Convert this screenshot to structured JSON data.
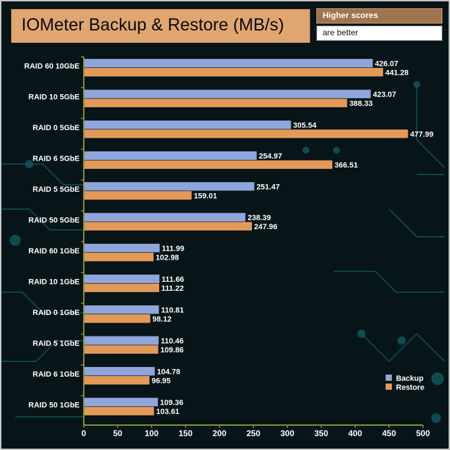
{
  "header": {
    "title": "IOMeter Backup & Restore (MB/s)",
    "note_line1": "Higher scores",
    "note_line2": "are better"
  },
  "colors": {
    "backup": "#8fa6dc",
    "restore": "#e39a58",
    "axis": "#8a8f3a",
    "background": "#071418",
    "circuit": "#0f5a60"
  },
  "chart_data": {
    "type": "bar",
    "orientation": "horizontal",
    "title": "IOMeter Backup & Restore (MB/s)",
    "xlabel": "",
    "ylabel": "",
    "xlim": [
      0,
      500
    ],
    "xticks": [
      0,
      50,
      100,
      150,
      200,
      250,
      300,
      350,
      400,
      450,
      500
    ],
    "grid": false,
    "legend_position": "bottom-right",
    "categories": [
      "RAID 60 10GbE",
      "RAID 10 5GbE",
      "RAID 0 5GbE",
      "RAID 6 5GbE",
      "RAID 5 5GbE",
      "RAID 50 5GbE",
      "RAID 60 1GbE",
      "RAID 10 1GbE",
      "RAID 0 1GbE",
      "RAID 5 1GbE",
      "RAID 6 1GbE",
      "RAID 50 1GbE"
    ],
    "series": [
      {
        "name": "Backup",
        "values": [
          426.07,
          423.07,
          305.54,
          254.97,
          251.47,
          238.39,
          111.99,
          111.66,
          110.81,
          110.46,
          104.78,
          109.36
        ]
      },
      {
        "name": "Restore",
        "values": [
          441.28,
          388.33,
          477.99,
          366.51,
          159.01,
          247.96,
          102.98,
          111.22,
          98.12,
          109.86,
          96.95,
          103.61
        ]
      }
    ]
  }
}
